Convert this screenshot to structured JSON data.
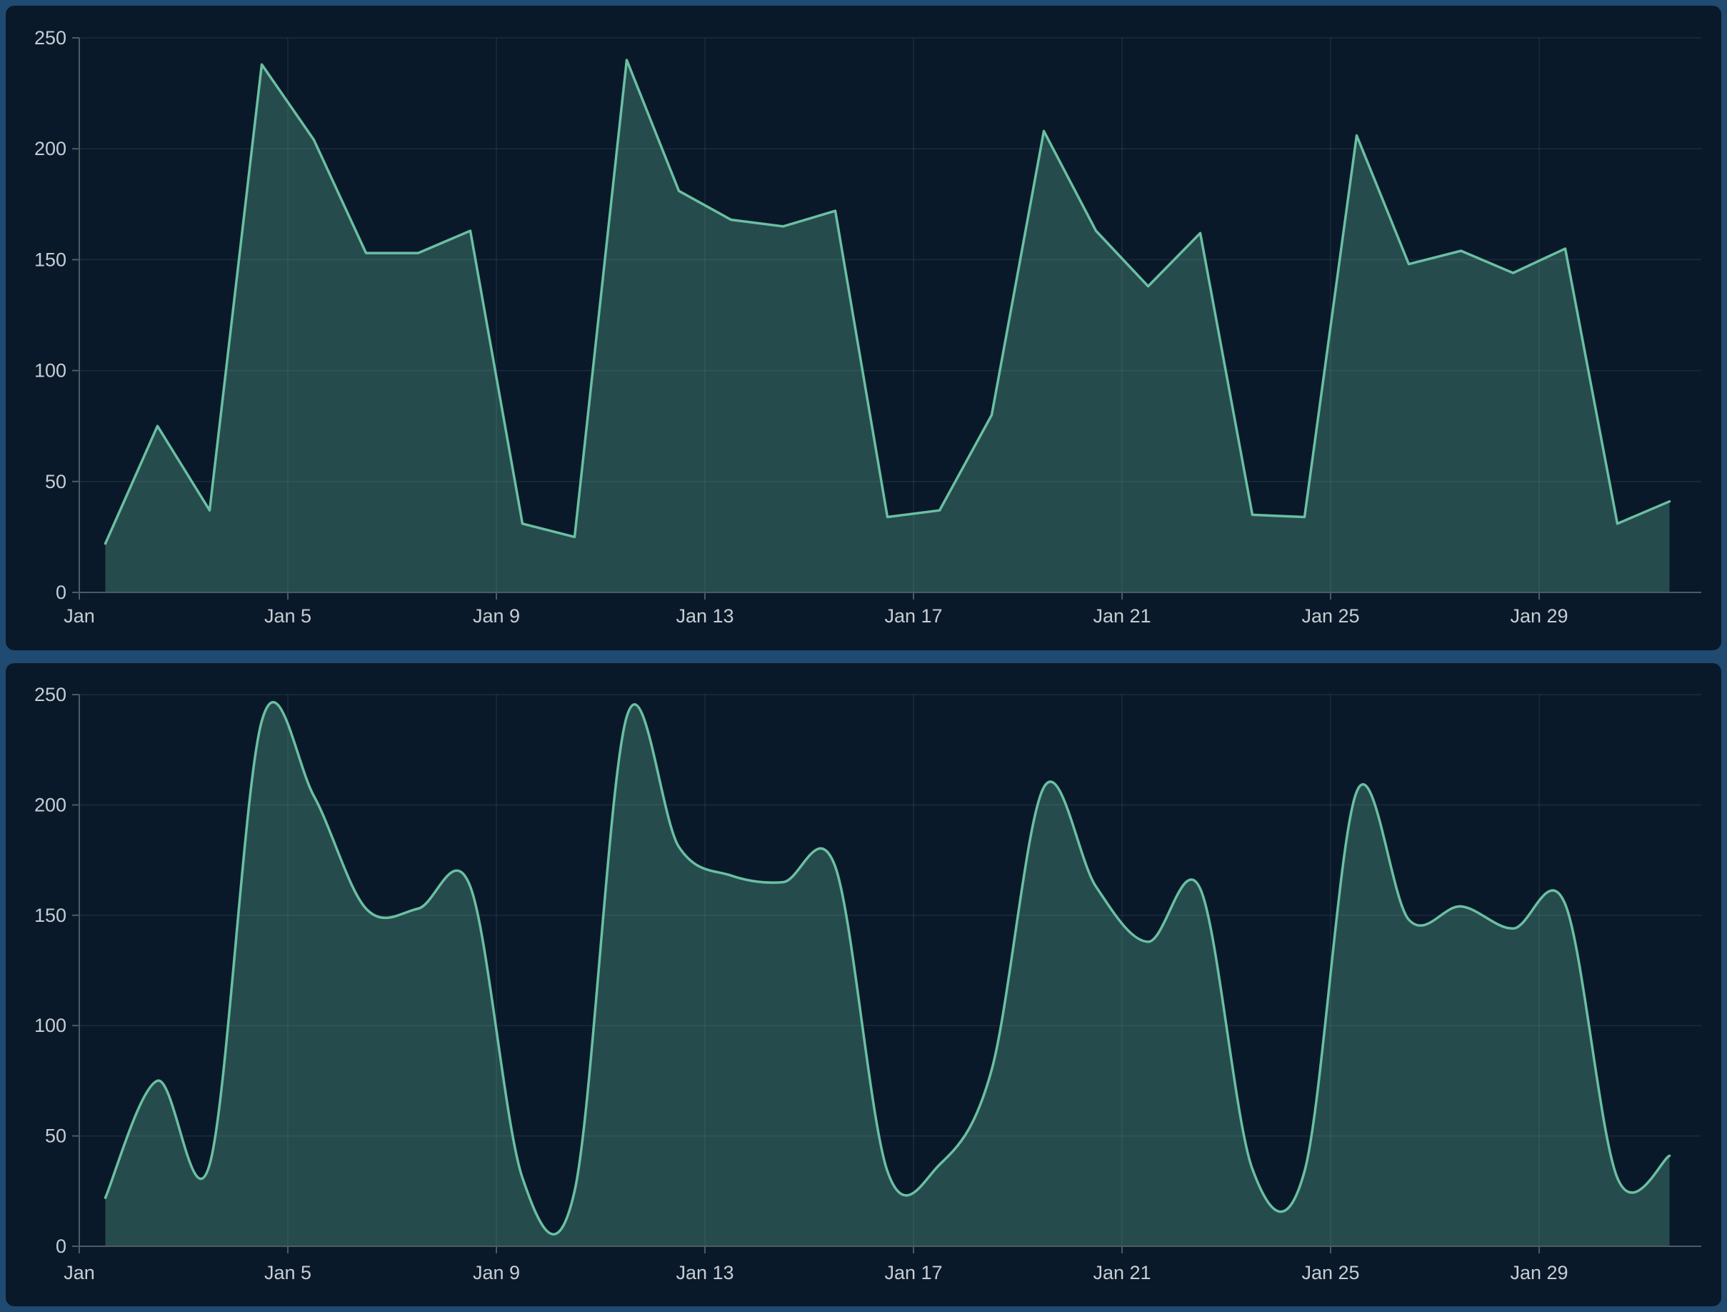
{
  "page": {
    "background": "#1F4A72",
    "card_background": "#0A1929"
  },
  "chart_data": [
    {
      "id": "area-chart-linear",
      "type": "area",
      "curve": "linear",
      "title": "",
      "xlabel": "",
      "ylabel": "",
      "x": [
        "Jan 1",
        "Jan 2",
        "Jan 3",
        "Jan 4",
        "Jan 5",
        "Jan 6",
        "Jan 7",
        "Jan 8",
        "Jan 9",
        "Jan 10",
        "Jan 11",
        "Jan 12",
        "Jan 13",
        "Jan 14",
        "Jan 15",
        "Jan 16",
        "Jan 17",
        "Jan 18",
        "Jan 19",
        "Jan 20",
        "Jan 21",
        "Jan 22",
        "Jan 23",
        "Jan 24",
        "Jan 25",
        "Jan 26",
        "Jan 27",
        "Jan 28",
        "Jan 29",
        "Jan 30",
        "Jan 31"
      ],
      "values": [
        22,
        75,
        37,
        238,
        204,
        153,
        153,
        163,
        31,
        25,
        240,
        181,
        168,
        165,
        172,
        34,
        37,
        80,
        208,
        163,
        138,
        162,
        35,
        34,
        206,
        148,
        154,
        144,
        155,
        31,
        41
      ],
      "ylim": [
        0,
        250
      ],
      "y_ticks": [
        0,
        50,
        100,
        150,
        200,
        250
      ],
      "x_tick_positions": [
        1,
        5,
        9,
        13,
        17,
        21,
        25,
        29
      ],
      "x_tick_labels": [
        "Jan",
        "Jan 5",
        "Jan 9",
        "Jan 13",
        "Jan 17",
        "Jan 21",
        "Jan 25",
        "Jan 29"
      ],
      "grid": "horizontal+vertical",
      "legend": "none",
      "colors": {
        "line": "#6AC0A2",
        "fill": "#6AC0A2",
        "fill_opacity": 0.3,
        "grid": "rgba(194,224,255,0.09)",
        "axis": "#4C5A66",
        "tick_label": "#C6CDD4"
      }
    },
    {
      "id": "area-chart-smooth",
      "type": "area",
      "curve": "smooth",
      "title": "",
      "xlabel": "",
      "ylabel": "",
      "x": [
        "Jan 1",
        "Jan 2",
        "Jan 3",
        "Jan 4",
        "Jan 5",
        "Jan 6",
        "Jan 7",
        "Jan 8",
        "Jan 9",
        "Jan 10",
        "Jan 11",
        "Jan 12",
        "Jan 13",
        "Jan 14",
        "Jan 15",
        "Jan 16",
        "Jan 17",
        "Jan 18",
        "Jan 19",
        "Jan 20",
        "Jan 21",
        "Jan 22",
        "Jan 23",
        "Jan 24",
        "Jan 25",
        "Jan 26",
        "Jan 27",
        "Jan 28",
        "Jan 29",
        "Jan 30",
        "Jan 31"
      ],
      "values": [
        22,
        75,
        37,
        238,
        204,
        153,
        153,
        163,
        31,
        25,
        240,
        181,
        168,
        165,
        172,
        34,
        37,
        80,
        208,
        163,
        138,
        162,
        35,
        34,
        206,
        148,
        154,
        144,
        155,
        31,
        41
      ],
      "ylim": [
        0,
        250
      ],
      "y_ticks": [
        0,
        50,
        100,
        150,
        200,
        250
      ],
      "x_tick_positions": [
        1,
        5,
        9,
        13,
        17,
        21,
        25,
        29
      ],
      "x_tick_labels": [
        "Jan",
        "Jan 5",
        "Jan 9",
        "Jan 13",
        "Jan 17",
        "Jan 21",
        "Jan 25",
        "Jan 29"
      ],
      "grid": "horizontal+vertical",
      "legend": "none",
      "colors": {
        "line": "#6AC0A2",
        "fill": "#6AC0A2",
        "fill_opacity": 0.3,
        "grid": "rgba(194,224,255,0.09)",
        "axis": "#4C5A66",
        "tick_label": "#C6CDD4"
      }
    }
  ]
}
